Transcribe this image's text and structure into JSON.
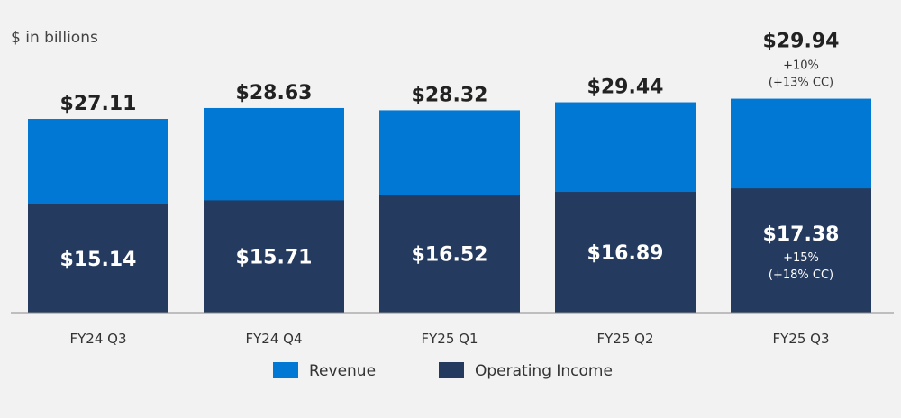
{
  "chart_data": {
    "type": "bar",
    "stacked": false,
    "overlapped": true,
    "unit_label": "$ in billions",
    "categories": [
      "FY24 Q3",
      "FY24 Q4",
      "FY25 Q1",
      "FY25 Q2",
      "FY25 Q3"
    ],
    "series": [
      {
        "name": "Revenue",
        "color": "#0078d4",
        "values": [
          27.11,
          28.63,
          28.32,
          29.44,
          29.94
        ],
        "labels": [
          "$27.11",
          "$28.63",
          "$28.32",
          "$29.44",
          "$29.94"
        ]
      },
      {
        "name": "Operating Income",
        "color": "#243a5e",
        "values": [
          15.14,
          15.71,
          16.52,
          16.89,
          17.38
        ],
        "labels": [
          "$15.14",
          "$15.71",
          "$16.52",
          "$16.89",
          "$17.38"
        ]
      }
    ],
    "annotations": {
      "revenue": {
        "category": "FY25 Q3",
        "lines": [
          "+10%",
          "(+13% CC)"
        ]
      },
      "operating_income": {
        "category": "FY25 Q3",
        "lines": [
          "+15%",
          "(+18% CC)"
        ]
      }
    },
    "ylim": [
      0,
      32
    ],
    "grid": false,
    "legend_position": "bottom"
  }
}
